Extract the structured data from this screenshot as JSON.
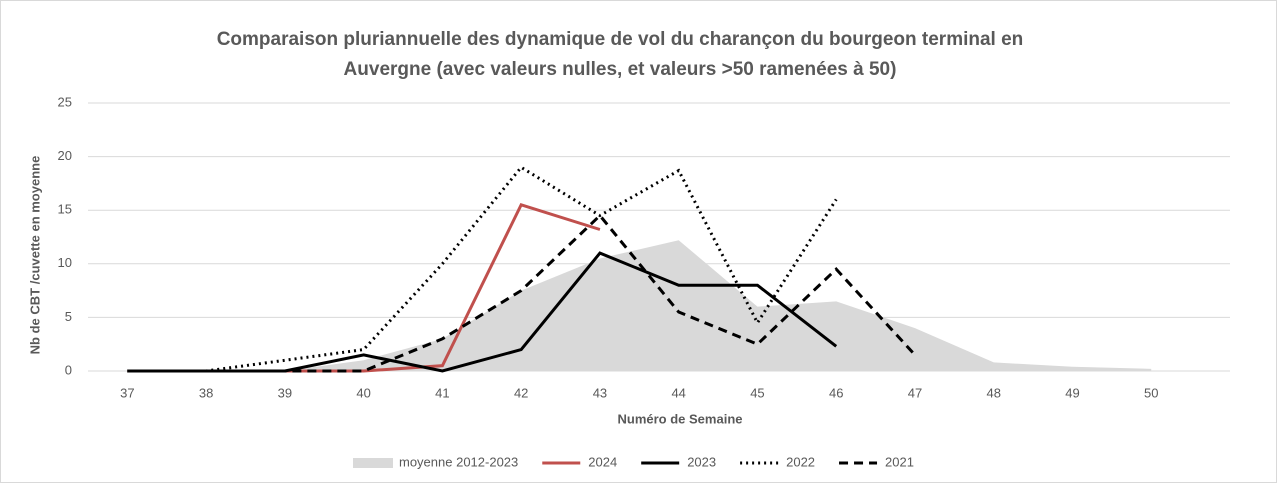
{
  "chart_data": {
    "type": "line",
    "title": [
      "Comparaison pluriannuelle des dynamique de vol du charançon du bourgeon terminal en",
      "Auvergne (avec valeurs nulles, et valeurs >50 ramenées à 50)"
    ],
    "x_label": "Numéro de Semaine",
    "y_label": "Nb de CBT /cuvette en moyenne",
    "x": [
      37,
      38,
      39,
      40,
      41,
      42,
      43,
      44,
      45,
      46,
      47,
      48,
      49,
      50
    ],
    "xlim": [
      36.5,
      51
    ],
    "xticks": [
      37,
      38,
      39,
      40,
      41,
      42,
      43,
      44,
      45,
      46,
      47,
      48,
      49,
      50
    ],
    "ylim": [
      0,
      25
    ],
    "yticks": [
      0,
      5,
      10,
      15,
      20,
      25
    ],
    "grid": true,
    "legend": "bottom",
    "series": [
      {
        "name": "moyenne 2012-2023",
        "color": "#d9d9d9",
        "kind": "area",
        "values": [
          0,
          0,
          0,
          1,
          3,
          7.5,
          10.5,
          12.2,
          6,
          6.5,
          4,
          0.8,
          0.4,
          0.2
        ]
      },
      {
        "name": "2024",
        "color": "#c0504d",
        "dash": "solid",
        "values": [
          0,
          0,
          0,
          0,
          0.5,
          15.5,
          13.2,
          null,
          null,
          null,
          null,
          null,
          null,
          null
        ]
      },
      {
        "name": "2023",
        "color": "#000000",
        "dash": "solid",
        "values": [
          0,
          0,
          0,
          1.5,
          0,
          2,
          11,
          8,
          8,
          2.3,
          null,
          null,
          null,
          null
        ]
      },
      {
        "name": "2022",
        "color": "#000000",
        "dash": "dot",
        "values": [
          0,
          0,
          1,
          2,
          10,
          19,
          14.5,
          18.7,
          4.5,
          16,
          null,
          null,
          null,
          null
        ]
      },
      {
        "name": "2021",
        "color": "#000000",
        "dash": "dash",
        "values": [
          0,
          0,
          0,
          0,
          3,
          7.5,
          14.5,
          5.5,
          2.5,
          9.5,
          1.5,
          null,
          null,
          null
        ]
      }
    ]
  }
}
